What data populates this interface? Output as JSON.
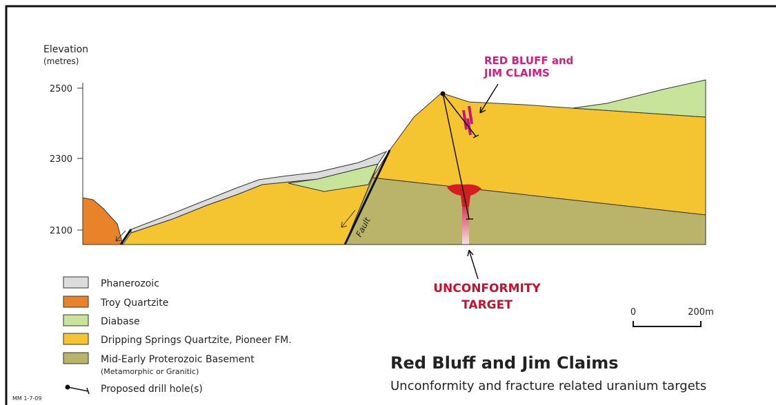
{
  "axis": {
    "title": "Elevation",
    "unit": "(metres)",
    "ticks": [
      "2500",
      "2300",
      "2100"
    ]
  },
  "labels": {
    "fault": "Fault",
    "claims": [
      "RED BLUFF and",
      "JIM CLAIMS"
    ],
    "target": [
      "UNCONFORMITY",
      "TARGET"
    ]
  },
  "legend": [
    "Phanerozoic",
    "Troy Quartzite",
    "Diabase",
    "Dripping Springs Quartzite, Pioneer FM.",
    "Mid-Early Proterozoic Basement",
    "(Metamorphic or Granitic)",
    "Proposed drill hole(s)"
  ],
  "scale": {
    "start": "0",
    "end": "200m"
  },
  "title": "Red Bluff and Jim Claims",
  "subtitle": "Unconformity and fracture related uranium targets",
  "note": "MM 1-7-09"
}
